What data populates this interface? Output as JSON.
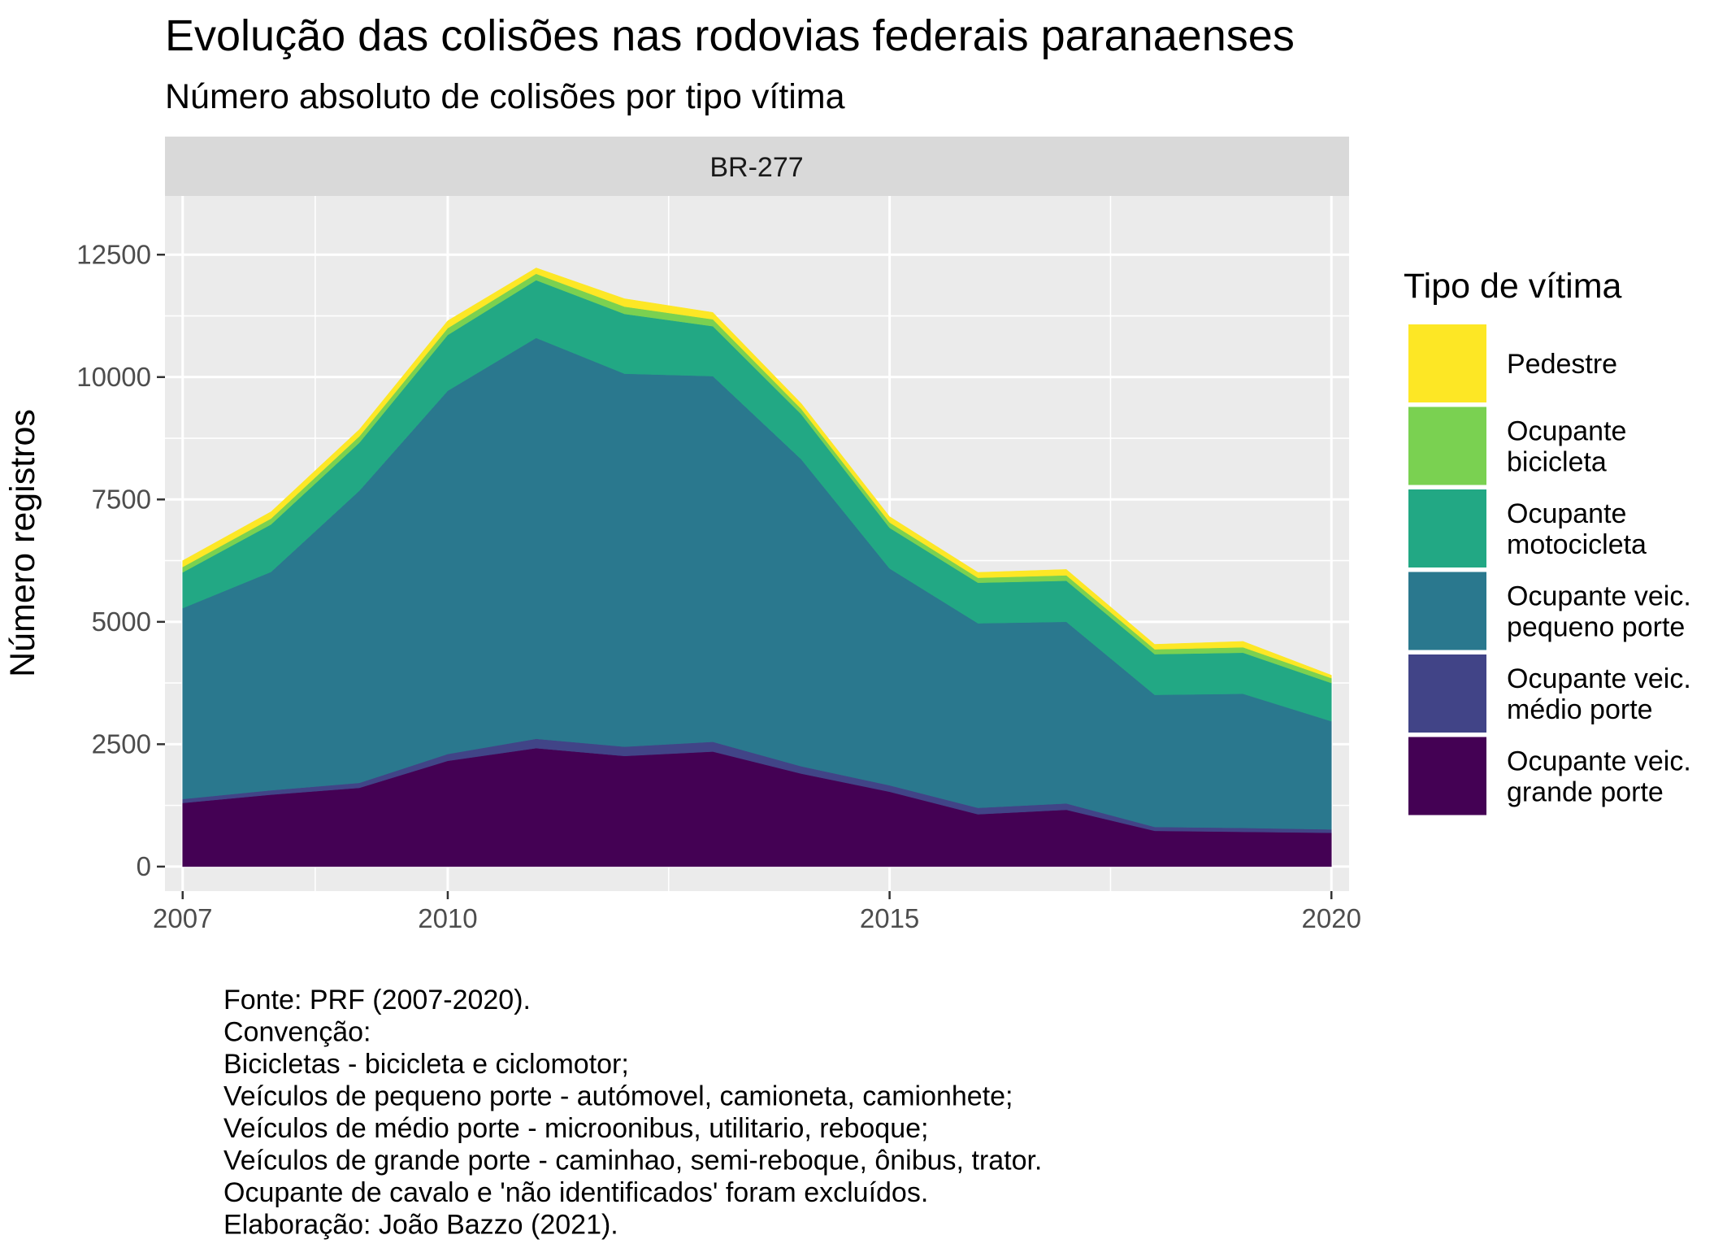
{
  "chart_data": {
    "type": "area",
    "stacked": true,
    "title": "Evolução das colisões nas rodovias federais paranaenses",
    "subtitle": "Número absoluto de colisões por tipo vítima",
    "facet": "BR-277",
    "ylabel": "Número registros",
    "xlabel": "",
    "ylim": [
      -500,
      13700
    ],
    "xlim": [
      2006.8,
      2020.2
    ],
    "xticks": [
      2007,
      2010,
      2015,
      2020
    ],
    "yticks": [
      0,
      2500,
      5000,
      7500,
      10000,
      12500
    ],
    "grid": true,
    "legend_title": "Tipo de vítima",
    "legend_position": "right",
    "x": [
      2007,
      2008,
      2009,
      2010,
      2011,
      2012,
      2013,
      2014,
      2015,
      2016,
      2017,
      2018,
      2019,
      2020
    ],
    "series": [
      {
        "name": "Ocupante veic. grande porte",
        "color": "#440154",
        "values": [
          1300,
          1470,
          1610,
          2160,
          2420,
          2260,
          2350,
          1900,
          1530,
          1070,
          1160,
          730,
          710,
          690
        ]
      },
      {
        "name": "Ocupante veic. médio porte",
        "color": "#414487",
        "values": [
          80,
          90,
          100,
          140,
          190,
          190,
          200,
          150,
          130,
          130,
          130,
          80,
          80,
          70
        ]
      },
      {
        "name": "Ocupante veic. pequeno porte",
        "color": "#2A788E",
        "values": [
          3900,
          4460,
          5970,
          7420,
          8190,
          7620,
          7470,
          6270,
          4430,
          3770,
          3710,
          2700,
          2740,
          2210
        ]
      },
      {
        "name": "Ocupante motocicleta",
        "color": "#22A884",
        "values": [
          730,
          970,
          980,
          1140,
          1180,
          1220,
          1020,
          920,
          830,
          830,
          840,
          830,
          840,
          780
        ]
      },
      {
        "name": "Ocupante bicicleta",
        "color": "#7AD151",
        "values": [
          110,
          120,
          130,
          140,
          130,
          150,
          140,
          110,
          110,
          100,
          110,
          100,
          110,
          100
        ]
      },
      {
        "name": "Pedestre",
        "color": "#FDE725",
        "values": [
          130,
          140,
          140,
          150,
          120,
          160,
          140,
          110,
          120,
          110,
          120,
          100,
          120,
          60
        ]
      }
    ],
    "legend_entries": [
      {
        "lines": [
          "Pedestre"
        ],
        "color": "#FDE725"
      },
      {
        "lines": [
          "Ocupante",
          "bicicleta"
        ],
        "color": "#7AD151"
      },
      {
        "lines": [
          "Ocupante",
          "motocicleta"
        ],
        "color": "#22A884"
      },
      {
        "lines": [
          "Ocupante veic.",
          "pequeno porte"
        ],
        "color": "#2A788E"
      },
      {
        "lines": [
          "Ocupante veic.",
          "médio porte"
        ],
        "color": "#414487"
      },
      {
        "lines": [
          "Ocupante veic.",
          "grande porte"
        ],
        "color": "#440154"
      }
    ],
    "caption": [
      "Fonte: PRF (2007-2020).",
      "Convenção:",
      "Bicicletas - bicicleta e ciclomotor;",
      "Veículos de pequeno porte - autómovel, camioneta, camionhete;",
      "Veículos de médio porte - microonibus, utilitario, reboque;",
      "Veículos de grande porte - caminhao, semi-reboque, ônibus, trator.",
      "Ocupante de cavalo e 'não identificados' foram excluídos.",
      "Elaboração: João Bazzo (2021)."
    ]
  }
}
